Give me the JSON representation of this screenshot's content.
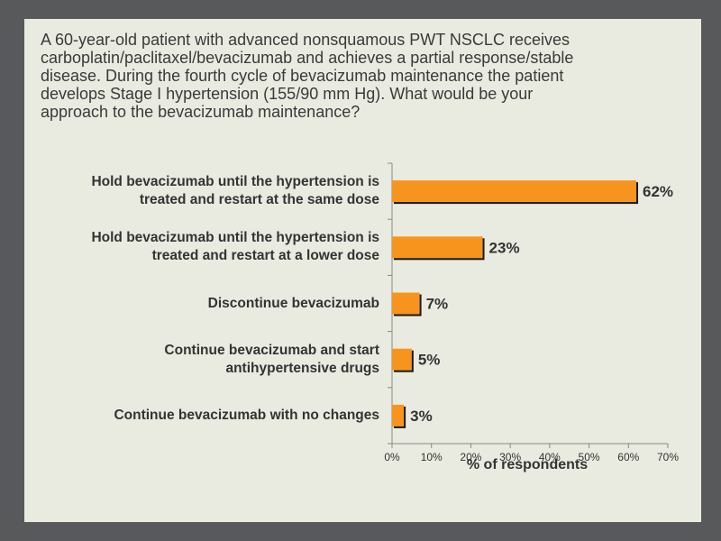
{
  "question": "A 60-year-old patient with advanced nonsquamous PWT NSCLC receives\ncarboplatin/paclitaxel/bevacizumab and achieves a partial response/stable\ndisease. During the fourth cycle of bevacizumab maintenance the patient\ndevelops Stage I hypertension (155/90 mm Hg). What would be your\napproach to the bevacizumab maintenance?",
  "colors": {
    "bar": "#f7941d",
    "bar_shadow": "#1a1a1a",
    "slide_bg": "#e9ebe0",
    "frame_bg": "#58595b"
  },
  "chart_data": {
    "type": "bar",
    "orientation": "horizontal",
    "categories": [
      "Hold bevacizumab until the hypertension is\ntreated and restart at the same dose",
      "Hold bevacizumab until the hypertension is\ntreated and restart at a lower dose",
      "Discontinue bevacizumab",
      "Continue bevacizumab and start\nantihypertensive drugs",
      "Continue bevacizumab with no changes"
    ],
    "values": [
      62,
      23,
      7,
      5,
      3
    ],
    "value_labels": [
      "62%",
      "23%",
      "7%",
      "5%",
      "3%"
    ],
    "xlabel": "% of respondents",
    "xlim": [
      0,
      70
    ],
    "xticks": [
      "0%",
      "10%",
      "20%",
      "30%",
      "40%",
      "50%",
      "60%",
      "70%"
    ],
    "grid": false
  }
}
